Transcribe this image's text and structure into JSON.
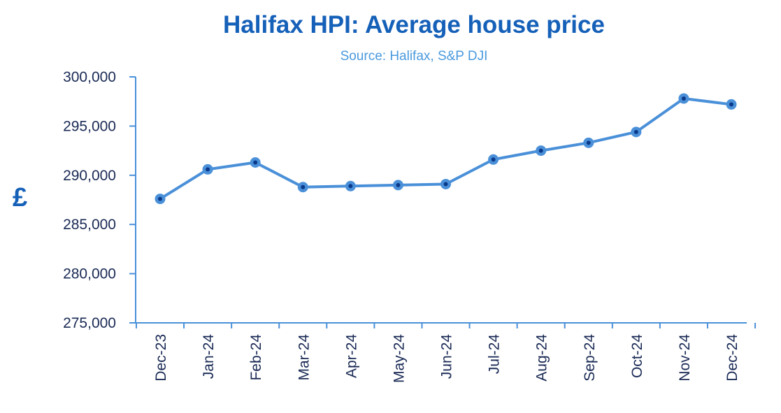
{
  "chart_data": {
    "type": "line",
    "title": "Halifax HPI: Average house price",
    "subtitle": "Source: Halifax, S&P DJI",
    "xlabel": "",
    "ylabel": "£",
    "categories": [
      "Dec-23",
      "Jan-24",
      "Feb-24",
      "Mar-24",
      "Apr-24",
      "May-24",
      "Jun-24",
      "Jul-24",
      "Aug-24",
      "Sep-24",
      "Oct-24",
      "Nov-24",
      "Dec-24"
    ],
    "values": [
      287600,
      290600,
      291300,
      288800,
      288900,
      289000,
      289100,
      291600,
      292500,
      293300,
      294400,
      297800,
      297200
    ],
    "ylim": [
      275000,
      300000
    ],
    "yticks": [
      "275,000",
      "280,000",
      "285,000",
      "290,000",
      "295,000",
      "300,000"
    ],
    "ytick_values": [
      275000,
      280000,
      285000,
      290000,
      295000,
      300000
    ],
    "grid": false,
    "legend": "none",
    "colors": {
      "line": "#4a90d9",
      "marker_center": "#0b3a8a",
      "axis": "#4a90d9",
      "title": "#1560b8",
      "subtitle": "#4a9ade",
      "ticks": "#1a2a55"
    }
  }
}
